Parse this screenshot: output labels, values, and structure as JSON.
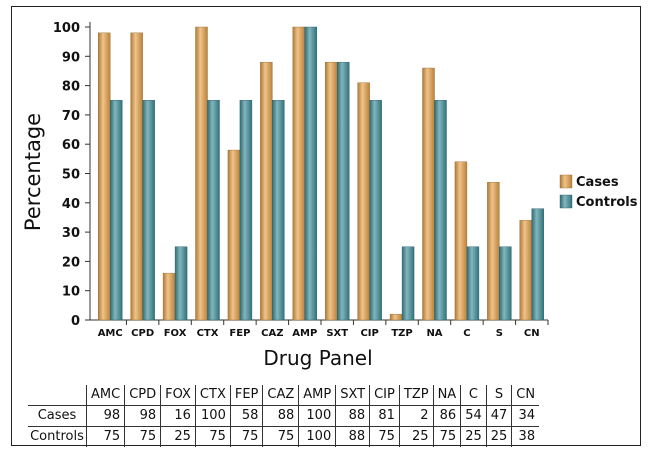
{
  "chart_data": {
    "type": "bar",
    "title": "",
    "xlabel": "Drug Panel",
    "ylabel": "Percentage",
    "ylim": [
      0,
      100
    ],
    "yticks": [
      0,
      10,
      20,
      30,
      40,
      50,
      60,
      70,
      80,
      90,
      100
    ],
    "categories": [
      "AMC",
      "CPD",
      "FOX",
      "CTX",
      "FEP",
      "CAZ",
      "AMP",
      "SXT",
      "CIP",
      "TZP",
      "NA",
      "C",
      "S",
      "CN"
    ],
    "series": [
      {
        "name": "Cases",
        "color": "#E8A24A",
        "values": [
          98,
          98,
          16,
          100,
          58,
          88,
          100,
          88,
          81,
          2,
          86,
          54,
          47,
          34
        ]
      },
      {
        "name": "Controls",
        "color": "#3F8F9A",
        "values": [
          75,
          75,
          25,
          75,
          75,
          75,
          100,
          88,
          75,
          25,
          75,
          25,
          25,
          38
        ]
      }
    ],
    "legend_position": "right",
    "grid": false
  },
  "table": {
    "rows": [
      {
        "label": "Cases",
        "values": [
          "98",
          "98",
          "16",
          "100",
          "58",
          "88",
          "100",
          "88",
          "81",
          "2",
          "86",
          "54",
          "47",
          "34"
        ]
      },
      {
        "label": "Controls",
        "values": [
          "75",
          "75",
          "25",
          "75",
          "75",
          "75",
          "100",
          "88",
          "75",
          "25",
          "75",
          "25",
          "25",
          "38"
        ]
      }
    ]
  }
}
